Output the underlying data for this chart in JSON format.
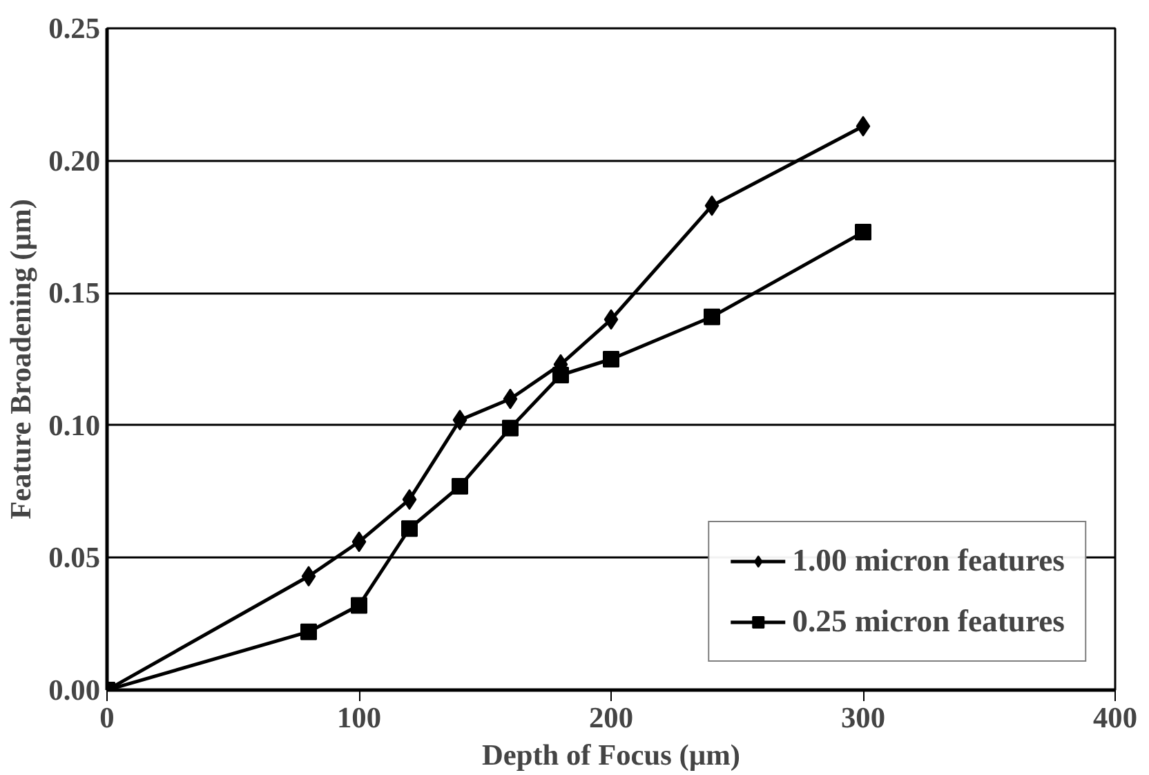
{
  "chart_data": {
    "type": "line",
    "xlabel": "Depth of Focus (µm)",
    "ylabel": "Feature Broadening (µm)",
    "xlim": [
      0,
      400
    ],
    "xticks": [
      0,
      100,
      200,
      300,
      400
    ],
    "ylim": [
      0,
      0.25
    ],
    "yticks": [
      {
        "value": 0,
        "label": "0.00"
      },
      {
        "value": 0.05,
        "label": "0.05"
      },
      {
        "value": 0.1,
        "label": "0.10"
      },
      {
        "value": 0.15,
        "label": "0.15"
      },
      {
        "value": 0.2,
        "label": "0.20"
      },
      {
        "value": 0.25,
        "label": "0.25"
      }
    ],
    "grid": "y",
    "legend": "bottom right",
    "line_style": "solid",
    "series": [
      {
        "name": "1.00 micron features",
        "color": "#000000",
        "marker": "diamond",
        "x": [
          0,
          80,
          100,
          120,
          140,
          160,
          180,
          200,
          240,
          300
        ],
        "values": [
          0,
          0.043,
          0.056,
          0.072,
          0.102,
          0.11,
          0.123,
          0.14,
          0.183,
          0.213
        ]
      },
      {
        "name": "0.25 micron features",
        "color": "#000000",
        "marker": "square",
        "x": [
          0,
          80,
          100,
          120,
          140,
          160,
          180,
          200,
          240,
          300
        ],
        "values": [
          0,
          0.022,
          0.032,
          0.061,
          0.077,
          0.099,
          0.119,
          0.125,
          0.141,
          0.173
        ]
      }
    ]
  }
}
